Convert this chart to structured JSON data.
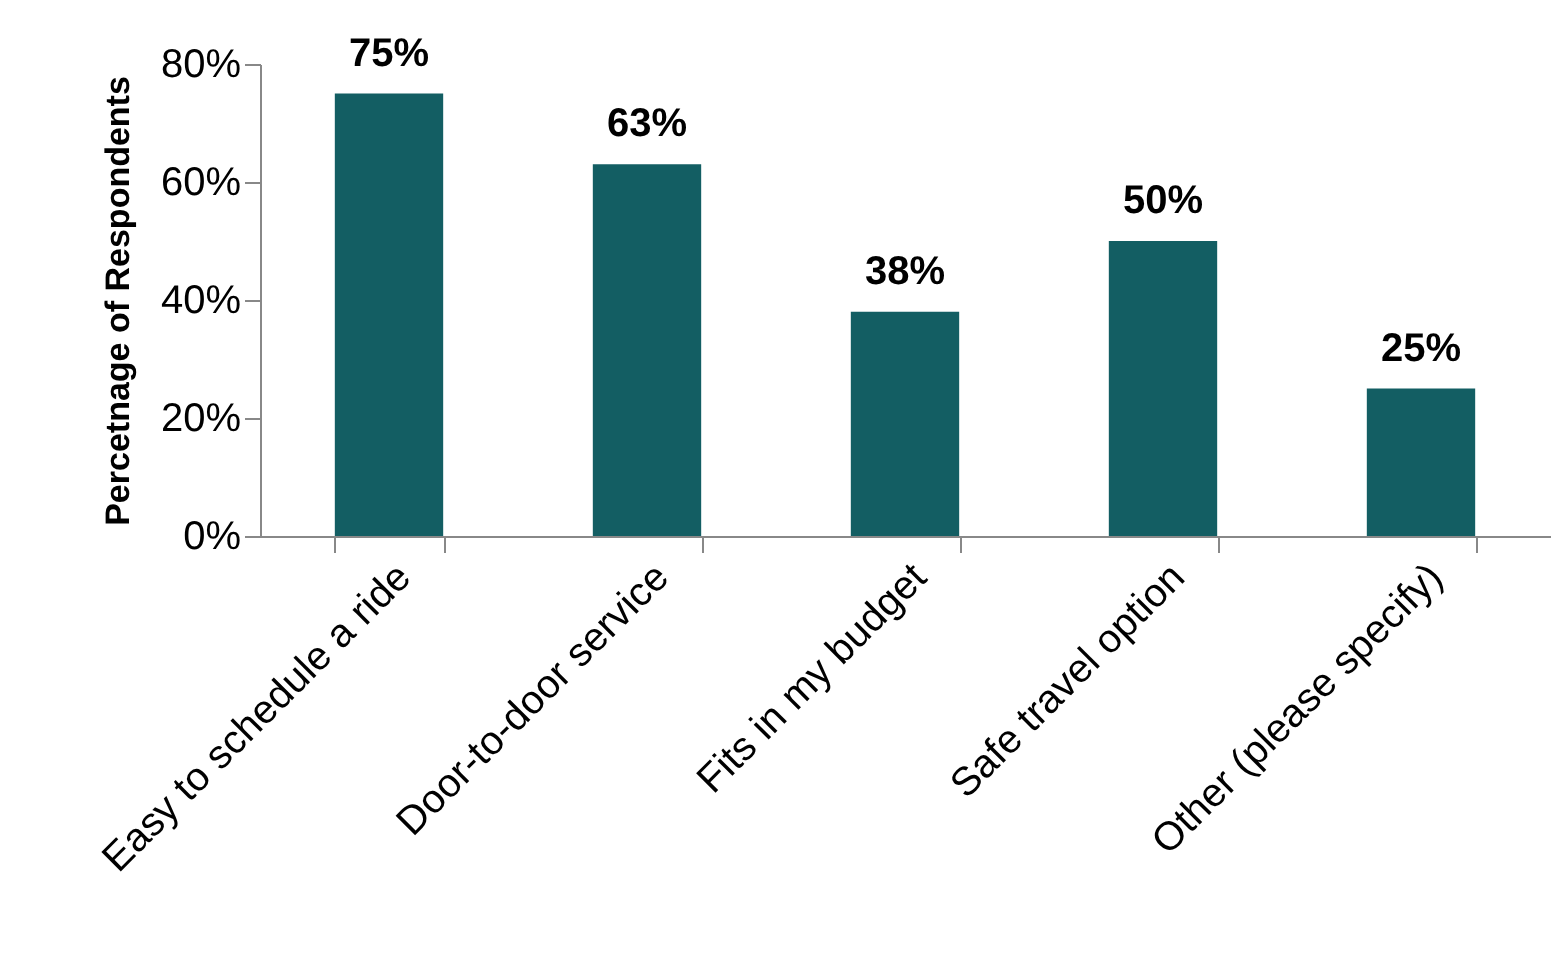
{
  "chart_data": {
    "type": "bar",
    "ylabel": "Percetnage of Respondents",
    "categories": [
      "Easy to schedule a ride",
      "Door-to-door service",
      "Fits in my budget",
      "Safe travel option",
      "Other (please specify)"
    ],
    "values": [
      75,
      63,
      38,
      50,
      25
    ],
    "value_labels": [
      "75%",
      "63%",
      "38%",
      "50%",
      "25%"
    ],
    "color": "#135e63",
    "ylim": [
      0,
      80
    ],
    "yticks": [
      {
        "value": 0,
        "label": "0%"
      },
      {
        "value": 20,
        "label": "20%"
      },
      {
        "value": 40,
        "label": "40%"
      },
      {
        "value": 60,
        "label": "60%"
      },
      {
        "value": 80,
        "label": "80%"
      }
    ],
    "grid": false
  }
}
